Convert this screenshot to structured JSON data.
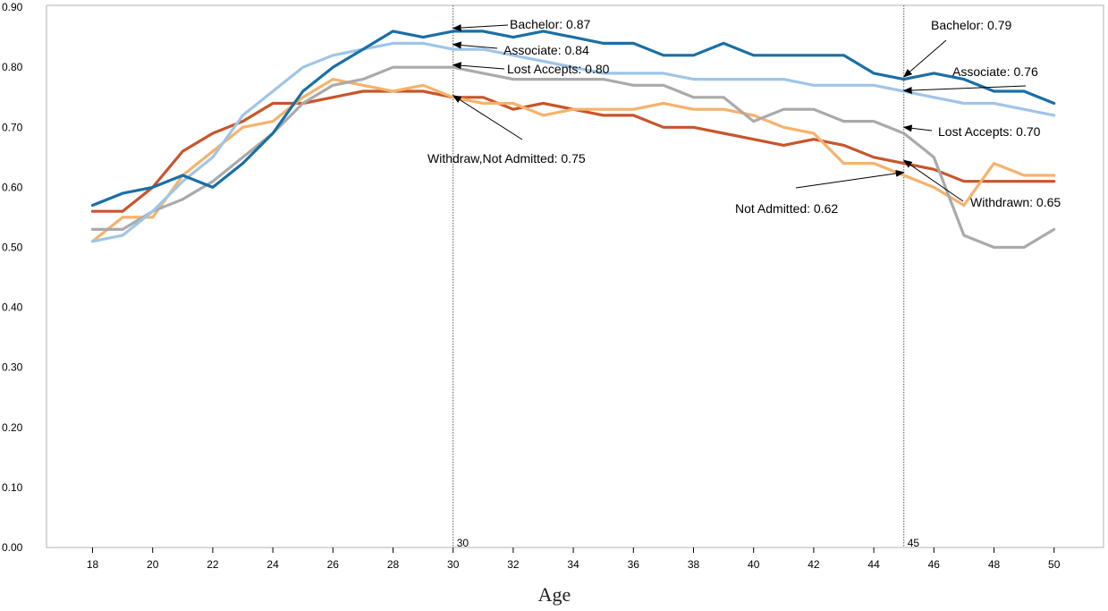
{
  "chart_data": {
    "type": "line",
    "title": "",
    "xlabel": "Age",
    "ylabel": "",
    "xlim": [
      17,
      52
    ],
    "ylim": [
      0,
      0.9
    ],
    "x_ticks": [
      18,
      20,
      22,
      24,
      26,
      28,
      30,
      32,
      34,
      36,
      38,
      40,
      42,
      44,
      46,
      48,
      50
    ],
    "y_ticks": [
      "0.00",
      "0.10",
      "0.20",
      "0.30",
      "0.40",
      "0.50",
      "0.60",
      "0.70",
      "0.80",
      "0.90"
    ],
    "grid": false,
    "legend": "none",
    "x": [
      18,
      19,
      20,
      21,
      22,
      23,
      24,
      25,
      26,
      27,
      28,
      29,
      30,
      31,
      32,
      33,
      34,
      35,
      36,
      37,
      38,
      39,
      40,
      41,
      42,
      43,
      44,
      45,
      46,
      47,
      48,
      49,
      50
    ],
    "series": [
      {
        "color": "#c8552b",
        "values": [
          0.56,
          0.56,
          0.6,
          0.66,
          0.69,
          0.71,
          0.74,
          0.74,
          0.75,
          0.76,
          0.76,
          0.76,
          0.75,
          0.75,
          0.73,
          0.74,
          0.73,
          0.72,
          0.72,
          0.7,
          0.7,
          0.69,
          0.68,
          0.67,
          0.68,
          0.67,
          0.65,
          0.64,
          0.63,
          0.61,
          0.61,
          0.61,
          0.61
        ]
      },
      {
        "color": "#f6b26b",
        "values": [
          0.51,
          0.55,
          0.55,
          0.62,
          0.66,
          0.7,
          0.71,
          0.75,
          0.78,
          0.77,
          0.76,
          0.77,
          0.75,
          0.74,
          0.74,
          0.72,
          0.73,
          0.73,
          0.73,
          0.74,
          0.73,
          0.73,
          0.72,
          0.7,
          0.69,
          0.64,
          0.64,
          0.62,
          0.6,
          0.57,
          0.64,
          0.62,
          0.62
        ]
      },
      {
        "color": "#aaaaaa",
        "values": [
          0.53,
          0.53,
          0.56,
          0.58,
          0.61,
          0.65,
          0.69,
          0.74,
          0.77,
          0.78,
          0.8,
          0.8,
          0.8,
          0.79,
          0.78,
          0.78,
          0.78,
          0.78,
          0.77,
          0.77,
          0.75,
          0.75,
          0.71,
          0.73,
          0.73,
          0.71,
          0.71,
          0.69,
          0.65,
          0.52,
          0.5,
          0.5,
          0.53
        ]
      },
      {
        "color": "#9fc5e8",
        "values": [
          0.51,
          0.52,
          0.56,
          0.61,
          0.65,
          0.72,
          0.76,
          0.8,
          0.82,
          0.83,
          0.84,
          0.84,
          0.83,
          0.83,
          0.82,
          0.81,
          0.8,
          0.79,
          0.79,
          0.79,
          0.78,
          0.78,
          0.78,
          0.78,
          0.77,
          0.77,
          0.77,
          0.76,
          0.75,
          0.74,
          0.74,
          0.73,
          0.72
        ]
      },
      {
        "color": "#1a6fa5",
        "values": [
          0.57,
          0.59,
          0.6,
          0.62,
          0.6,
          0.64,
          0.69,
          0.76,
          0.8,
          0.83,
          0.86,
          0.85,
          0.86,
          0.86,
          0.85,
          0.86,
          0.85,
          0.84,
          0.84,
          0.82,
          0.82,
          0.84,
          0.82,
          0.82,
          0.82,
          0.82,
          0.79,
          0.78,
          0.79,
          0.78,
          0.76,
          0.76,
          0.74
        ]
      }
    ],
    "reference_lines": [
      {
        "x": 30,
        "label": "30"
      },
      {
        "x": 45,
        "label": "45"
      }
    ],
    "annotations": [
      {
        "text": "Bachelor: 0.87",
        "point": [
          30,
          0.865
        ]
      },
      {
        "text": "Associate: 0.84",
        "point": [
          30,
          0.838
        ]
      },
      {
        "text": "Lost Accepts: 0.80",
        "point": [
          30,
          0.804
        ]
      },
      {
        "text": "Withdraw,Not Admitted: 0.75",
        "point": [
          30,
          0.753
        ]
      },
      {
        "text": "Bachelor: 0.79",
        "point": [
          45,
          0.784
        ]
      },
      {
        "text": "Associate: 0.76",
        "point": [
          45,
          0.761
        ]
      },
      {
        "text": "Lost Accepts: 0.70",
        "point": [
          45,
          0.7
        ]
      },
      {
        "text": "Not Admitted: 0.62",
        "point": [
          45,
          0.625
        ]
      },
      {
        "text": "Withdrawn: 0.65",
        "point": [
          45,
          0.645
        ]
      }
    ]
  }
}
